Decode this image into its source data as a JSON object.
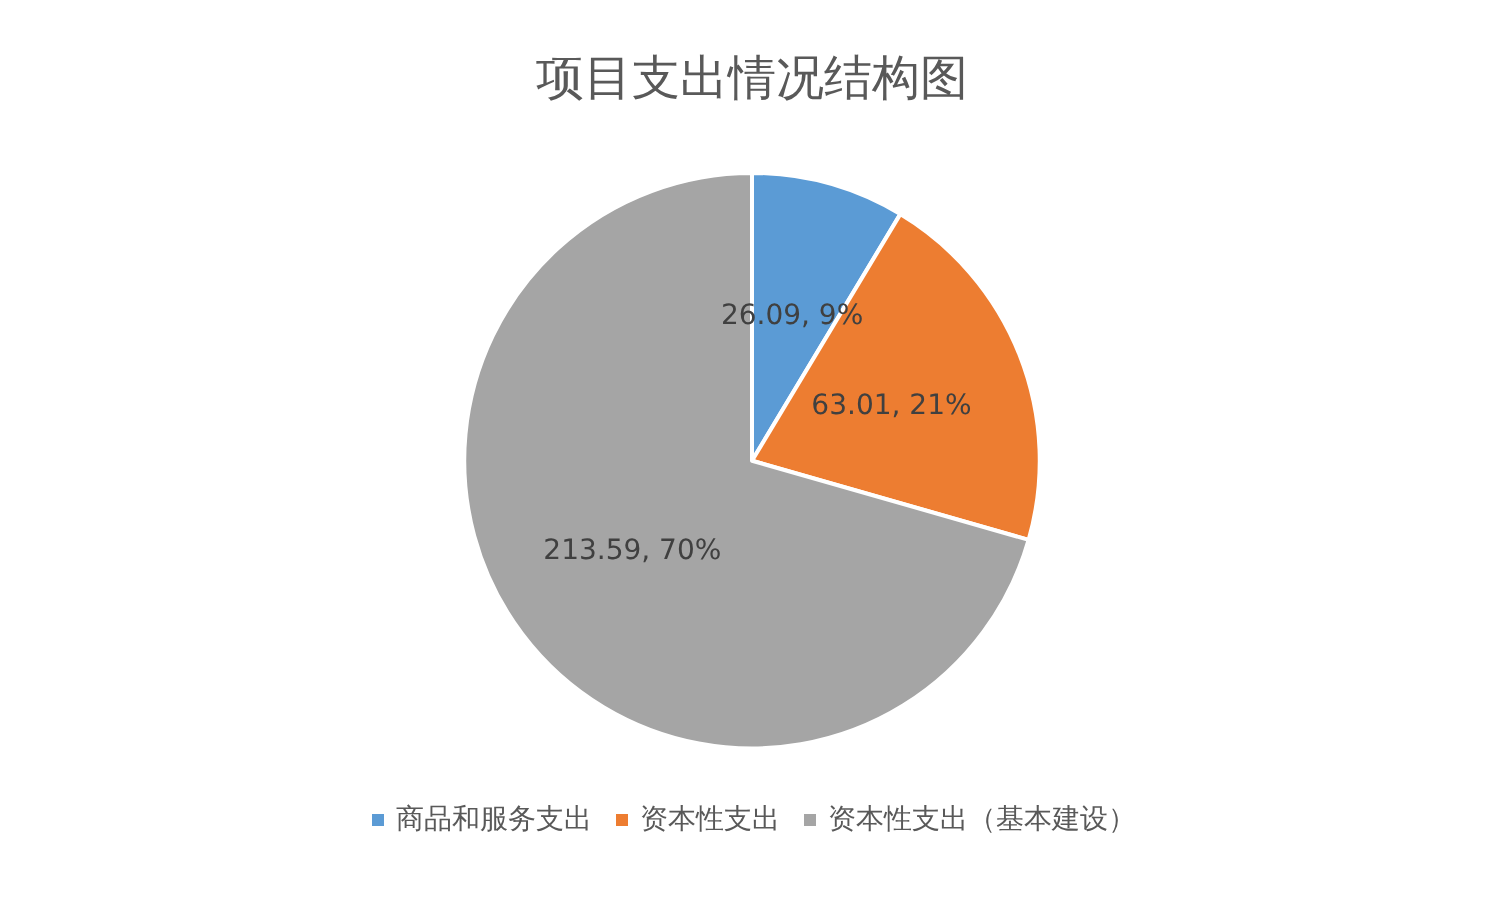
{
  "chart_data": {
    "type": "pie",
    "title": "项目支出情况结构图",
    "categories": [
      "商品和服务支出",
      "资本性支出",
      "资本性支出（基本建设）"
    ],
    "values": [
      26.09,
      63.01,
      213.59
    ],
    "colors": [
      "#5b9bd5",
      "#ed7d31",
      "#a5a5a5"
    ],
    "value_labels": [
      "26.09, 9%",
      "63.01, 21%",
      "213.59, 70%"
    ],
    "legend": "bottom"
  }
}
